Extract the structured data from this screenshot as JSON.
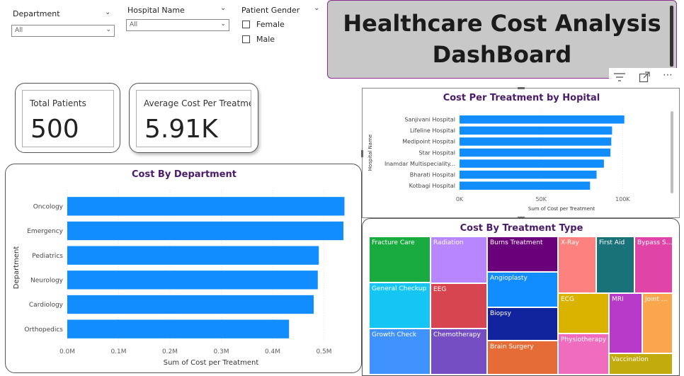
{
  "slicers": {
    "department": {
      "title": "Department",
      "value": "All"
    },
    "hospital": {
      "title": "Hospital Name",
      "value": "All"
    },
    "gender": {
      "title": "Patient Gender",
      "options": [
        "Female",
        "Male"
      ]
    }
  },
  "title": {
    "line1": "Healthcare Cost Analysis",
    "line2": "DashBoard"
  },
  "cards": {
    "total_patients": {
      "label": "Total Patients",
      "value": "500"
    },
    "avg_cost": {
      "label": "Average Cost Per Treatmen",
      "value": "5.91K"
    }
  },
  "toolbar": {
    "filter_icon": "filter-icon",
    "focus_icon": "focus-mode-icon",
    "more_icon": "more-options-icon"
  },
  "chart_data": [
    {
      "type": "bar",
      "title": "Cost By Department",
      "orientation": "horizontal",
      "categories": [
        "Oncology",
        "Emergency",
        "Pediatrics",
        "Neurology",
        "Cardiology",
        "Orthopedics"
      ],
      "values": [
        540000,
        538000,
        490000,
        488000,
        480000,
        432000
      ],
      "xlabel": "Sum of Cost per Treatment",
      "ylabel": "Department",
      "xlim": [
        0,
        560000
      ],
      "ticks": [
        "0.0M",
        "0.1M",
        "0.2M",
        "0.3M",
        "0.4M",
        "0.5M"
      ],
      "tick_values": [
        0,
        100000,
        200000,
        300000,
        400000,
        500000
      ],
      "color": "#118DFF"
    },
    {
      "type": "bar",
      "title": "Cost Per Treatment by Hopital",
      "orientation": "horizontal",
      "categories": [
        "Sanjivani Hospital",
        "Lifeline Hospital",
        "Medipoint Hospital",
        "Star Hospital",
        "Inamdar Multispeciality...",
        "Bharati Hospital",
        "Kotbagi Hospital"
      ],
      "values": [
        101000,
        93500,
        93000,
        92500,
        88500,
        84000,
        80000
      ],
      "xlabel": "Sum of Cost per Treatment",
      "ylabel": "Hospital Name",
      "xlim": [
        0,
        125000
      ],
      "ticks": [
        "0K",
        "50K",
        "100K"
      ],
      "tick_values": [
        0,
        50000,
        100000
      ],
      "color": "#118DFF"
    },
    {
      "type": "treemap",
      "title": "Cost By Treatment Type",
      "labels": [
        "Fracture Care",
        "General Checkup",
        "Growth Check",
        "Radiation",
        "EEG",
        "Chemotherapy",
        "Burns Treatment",
        "Angioplasty",
        "Biopsy",
        "Brain Surgery",
        "X-Ray",
        "First Aid",
        "Bypass S...",
        "ECG",
        "MRI",
        "Joint ...",
        "Physiotherapy",
        "Vaccination"
      ],
      "colors": [
        "#1aab40",
        "#15c6f4",
        "#4092ff",
        "#b887ff",
        "#d64550",
        "#744ec2",
        "#6b007b",
        "#118dff",
        "#12239e",
        "#e66c37",
        "#fd817e",
        "#197278",
        "#e044a7",
        "#d9b300",
        "#b73ac9",
        "#f9a64e",
        "#ef6cbf",
        "#c2ab0d"
      ]
    }
  ]
}
